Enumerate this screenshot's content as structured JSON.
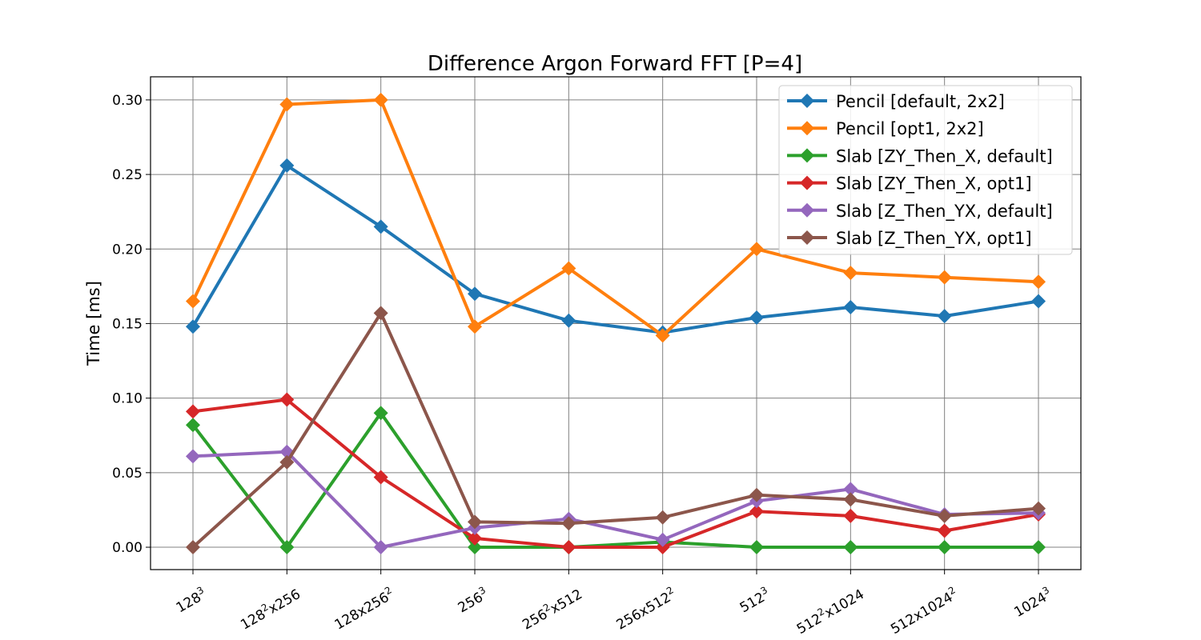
{
  "chart_data": {
    "type": "line",
    "title": "Difference Argon Forward FFT [P=4]",
    "xlabel": "",
    "ylabel": "Time [ms]",
    "categories": [
      {
        "base": "128",
        "sup1": "3",
        "mid": "",
        "sup2": ""
      },
      {
        "base": "128",
        "sup1": "2",
        "mid": "x256",
        "sup2": ""
      },
      {
        "base": "128x256",
        "sup1": "2",
        "mid": "",
        "sup2": ""
      },
      {
        "base": "256",
        "sup1": "3",
        "mid": "",
        "sup2": ""
      },
      {
        "base": "256",
        "sup1": "2",
        "mid": "x512",
        "sup2": ""
      },
      {
        "base": "256x512",
        "sup1": "2",
        "mid": "",
        "sup2": ""
      },
      {
        "base": "512",
        "sup1": "3",
        "mid": "",
        "sup2": ""
      },
      {
        "base": "512",
        "sup1": "2",
        "mid": "x1024",
        "sup2": ""
      },
      {
        "base": "512x1024",
        "sup1": "2",
        "mid": "",
        "sup2": ""
      },
      {
        "base": "1024",
        "sup1": "3",
        "mid": "",
        "sup2": ""
      }
    ],
    "ylim": [
      -0.015,
      0.3155
    ],
    "yticks": [
      "0.00",
      "0.05",
      "0.10",
      "0.15",
      "0.20",
      "0.25",
      "0.30"
    ],
    "grid": true,
    "legend_position": "top-right",
    "series": [
      {
        "name": "Pencil [default, 2x2]",
        "color": "#1f77b4",
        "values": [
          0.148,
          0.256,
          0.215,
          0.17,
          0.152,
          0.144,
          0.154,
          0.161,
          0.155,
          0.165
        ]
      },
      {
        "name": "Pencil [opt1, 2x2]",
        "color": "#ff7f0e",
        "values": [
          0.165,
          0.297,
          0.3,
          0.148,
          0.187,
          0.142,
          0.2,
          0.184,
          0.181,
          0.178
        ]
      },
      {
        "name": "Slab [ZY_Then_X, default]",
        "color": "#2ca02c",
        "values": [
          0.082,
          0.0,
          0.09,
          0.0,
          0.0,
          0.0035,
          0.0,
          0.0,
          0.0,
          0.0
        ]
      },
      {
        "name": "Slab [ZY_Then_X, opt1]",
        "color": "#d62728",
        "values": [
          0.091,
          0.099,
          0.047,
          0.006,
          0.0,
          0.0,
          0.024,
          0.021,
          0.011,
          0.022
        ]
      },
      {
        "name": "Slab [Z_Then_YX, default]",
        "color": "#9467bd",
        "values": [
          0.061,
          0.064,
          0.0,
          0.013,
          0.019,
          0.005,
          0.031,
          0.039,
          0.022,
          0.023
        ]
      },
      {
        "name": "Slab [Z_Then_YX, opt1]",
        "color": "#8c564b",
        "values": [
          0.0,
          0.057,
          0.157,
          0.017,
          0.016,
          0.02,
          0.035,
          0.032,
          0.021,
          0.026
        ]
      }
    ]
  }
}
